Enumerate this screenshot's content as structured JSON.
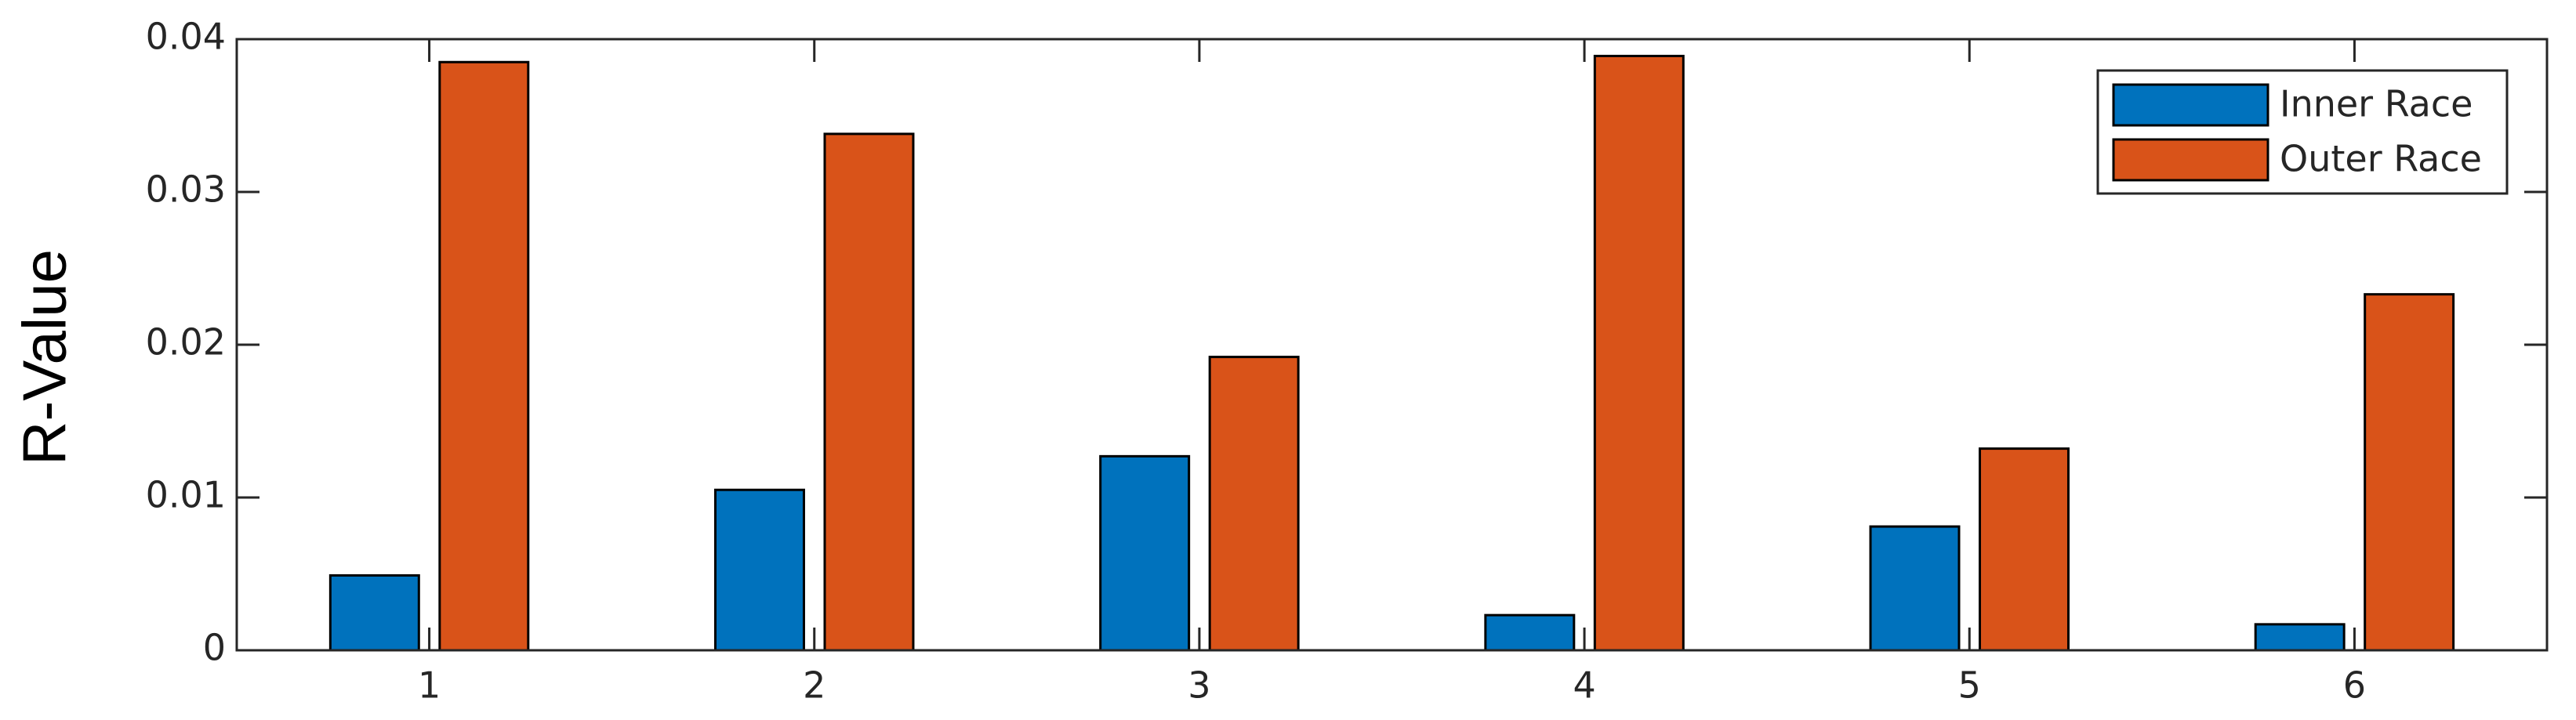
{
  "chart_data": {
    "type": "bar",
    "y_label": "R-Value",
    "categories": [
      "1",
      "2",
      "3",
      "4",
      "5",
      "6"
    ],
    "series": [
      {
        "name": "Inner Race",
        "color": "#0072bd",
        "values": [
          0.0049,
          0.0105,
          0.0127,
          0.0023,
          0.0081,
          0.0017
        ]
      },
      {
        "name": "Outer Race",
        "color": "#d95319",
        "values": [
          0.0385,
          0.0338,
          0.0192,
          0.0389,
          0.0132,
          0.0233
        ]
      }
    ],
    "ylim": [
      0,
      0.04
    ],
    "yticks": [
      0,
      0.01,
      0.02,
      0.03,
      0.04
    ],
    "grid": false,
    "legend": "top-right"
  }
}
